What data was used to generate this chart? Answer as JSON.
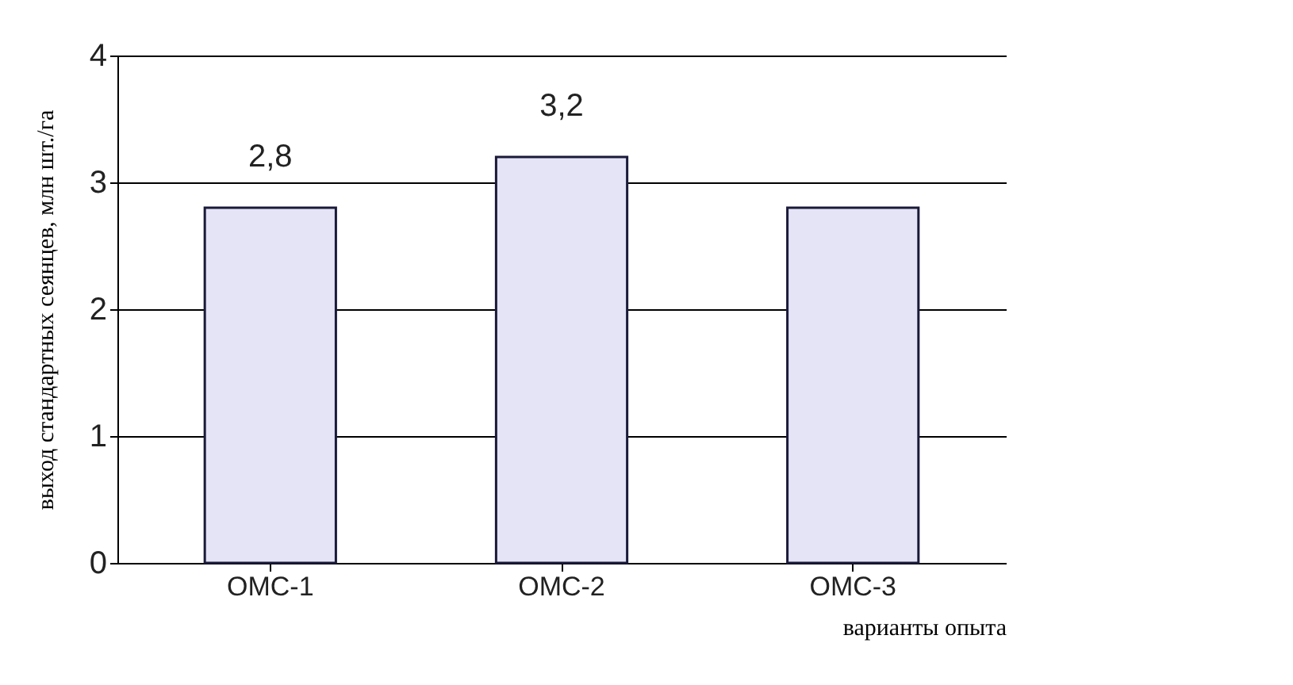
{
  "chart_data": {
    "type": "bar",
    "xlabel": "варианты опыта",
    "ylabel": "выход стандартных сеянцев, млн шт./га",
    "categories": [
      "ОМС-1",
      "ОМС-2",
      "ОМС-3"
    ],
    "values": [
      2.8,
      3.2,
      2.8
    ],
    "value_labels": [
      "2,8",
      "3,2",
      null
    ],
    "color": "#e4e4f6",
    "ylim": [
      0,
      4
    ],
    "yticks": [
      0,
      1,
      2,
      3,
      4
    ],
    "grid": "y"
  }
}
